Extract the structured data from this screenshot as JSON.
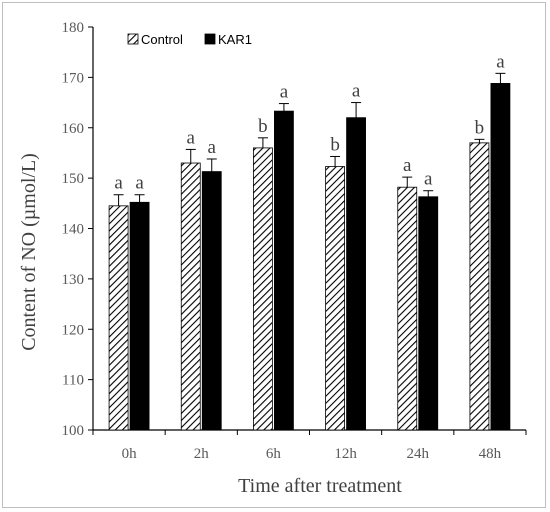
{
  "chart_data": {
    "type": "bar",
    "title": "",
    "xlabel": "Time after treatment",
    "ylabel": "Content of NO (µmol/L)",
    "ylim": [
      100,
      180
    ],
    "yticks": [
      100,
      110,
      120,
      130,
      140,
      150,
      160,
      170,
      180
    ],
    "categories": [
      "0h",
      "2h",
      "6h",
      "12h",
      "24h",
      "48h"
    ],
    "grid": false,
    "legend_position": "top-left",
    "series": [
      {
        "name": "Control",
        "pattern": "diagonal-hatch",
        "color": "#000000",
        "values": [
          144.5,
          153.0,
          156.0,
          152.3,
          148.2,
          157.0
        ],
        "errors": [
          2.2,
          2.7,
          2.0,
          2.0,
          2.0,
          0.7
        ],
        "labels": [
          "a",
          "a",
          "b",
          "b",
          "a",
          "b"
        ]
      },
      {
        "name": "KAR1",
        "pattern": "solid",
        "color": "#000000",
        "values": [
          145.2,
          151.3,
          163.3,
          162.0,
          146.3,
          168.8
        ],
        "errors": [
          1.5,
          2.5,
          1.5,
          3.0,
          1.2,
          2.0
        ],
        "labels": [
          "a",
          "a",
          "a",
          "a",
          "a",
          "a"
        ]
      }
    ]
  }
}
